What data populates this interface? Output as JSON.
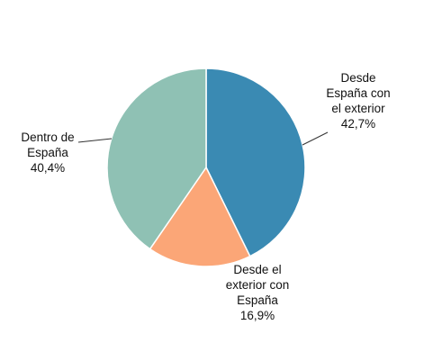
{
  "chart_data": {
    "type": "pie",
    "slices": [
      {
        "label": [
          "Desde",
          "España con",
          "el exterior"
        ],
        "value_text": "42,7%",
        "value": 42.7,
        "color": "#3a8ab3"
      },
      {
        "label": [
          "Desde el",
          "exterior con",
          "España"
        ],
        "value_text": "16,9%",
        "value": 16.9,
        "color": "#fba677"
      },
      {
        "label": [
          "Dentro de",
          "España"
        ],
        "value_text": "40,4%",
        "value": 40.4,
        "color": "#8fc1b4"
      }
    ]
  }
}
